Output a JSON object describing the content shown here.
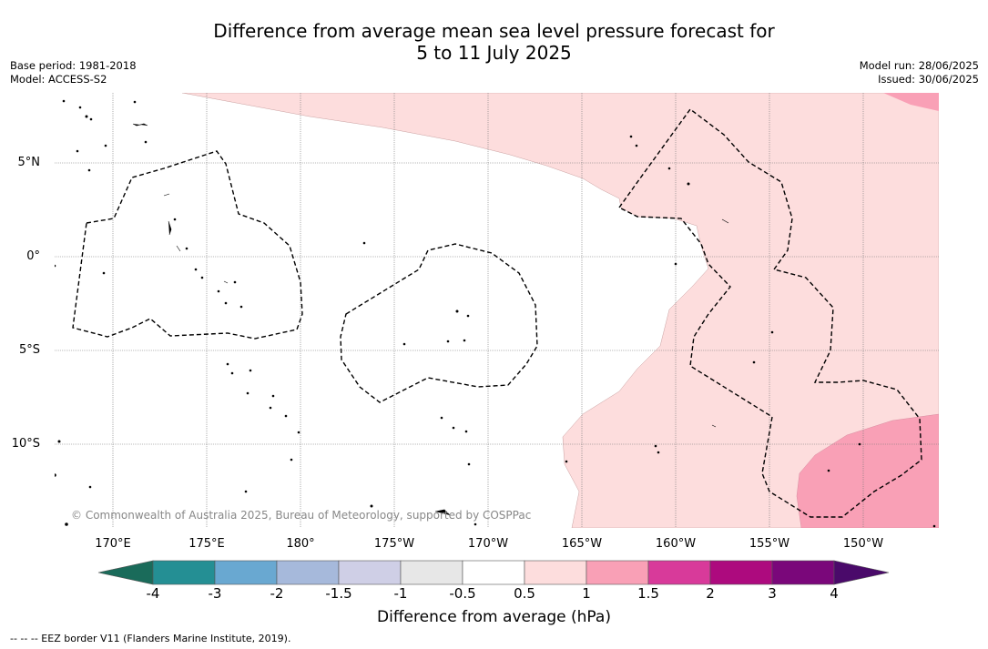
{
  "title_line1": "Difference from average mean sea level pressure forecast for",
  "title_line2": "5 to 11 July 2025",
  "meta_left": {
    "base_period": "Base period: 1981-2018",
    "model": "Model: ACCESS-S2"
  },
  "meta_right": {
    "model_run": "Model run: 28/06/2025",
    "issued": "Issued: 30/06/2025"
  },
  "lat_labels": [
    "5°N",
    "0°",
    "5°S",
    "10°S"
  ],
  "lon_labels": [
    "170°E",
    "175°E",
    "180°",
    "175°W",
    "170°W",
    "165°W",
    "160°W",
    "155°W",
    "150°W"
  ],
  "copyright": "© Commonwealth of Australia 2025, Bureau of Meteorology, supported by COSPPac",
  "colorbar": {
    "ticks": [
      "-4",
      "-3",
      "-2",
      "-1.5",
      "-1",
      "-0.5",
      "0.5",
      "1",
      "1.5",
      "2",
      "3",
      "4"
    ],
    "colors": [
      "#1a6b5a",
      "#248f94",
      "#69a8d1",
      "#a6b9db",
      "#cfcfe6",
      "#e7e7e7",
      "#ffffff",
      "#fddddd",
      "#f9a0b6",
      "#d83a9a",
      "#ad0a7e",
      "#7a077a",
      "#4a0a6a"
    ],
    "label": "Difference from average (hPa)"
  },
  "footer": "--  --  -- EEZ border V11 (Flanders Marine Institute, 2019).",
  "map_colors": {
    "positive_light": "#fddddd",
    "positive_mid": "#f9a0b6"
  }
}
